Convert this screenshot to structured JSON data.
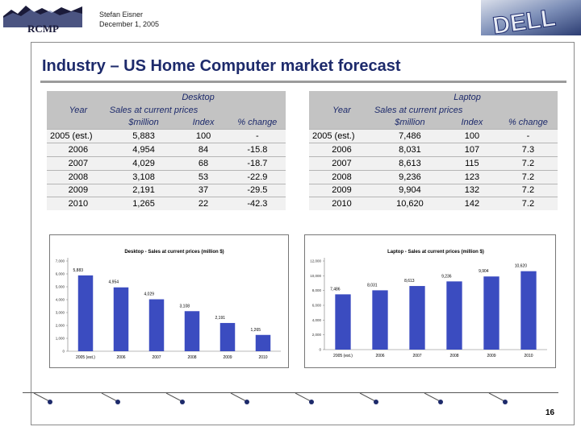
{
  "header": {
    "author": "Stefan Eisner",
    "date": "December 1, 2005",
    "logo_left": "RCMP",
    "logo_right": "DELL"
  },
  "title": "Industry – US Home Computer market forecast",
  "desktop_table": {
    "caption": "Desktop",
    "headers": {
      "year": "Year",
      "sales_line1": "Sales at current prices",
      "sales_line2": "$million",
      "index": "Index",
      "change": "% change"
    },
    "rows": [
      {
        "year": "2005 (est.)",
        "sales": "5,883",
        "index": "100",
        "change": "-"
      },
      {
        "year": "2006",
        "sales": "4,954",
        "index": "84",
        "change": "-15.8"
      },
      {
        "year": "2007",
        "sales": "4,029",
        "index": "68",
        "change": "-18.7"
      },
      {
        "year": "2008",
        "sales": "3,108",
        "index": "53",
        "change": "-22.9"
      },
      {
        "year": "2009",
        "sales": "2,191",
        "index": "37",
        "change": "-29.5"
      },
      {
        "year": "2010",
        "sales": "1,265",
        "index": "22",
        "change": "-42.3"
      }
    ]
  },
  "laptop_table": {
    "caption": "Laptop",
    "headers": {
      "year": "Year",
      "sales_line1": "Sales at current prices",
      "sales_line2": "$million",
      "index": "Index",
      "change": "% change"
    },
    "rows": [
      {
        "year": "2005 (est.)",
        "sales": "7,486",
        "index": "100",
        "change": "-"
      },
      {
        "year": "2006",
        "sales": "8,031",
        "index": "107",
        "change": "7.3"
      },
      {
        "year": "2007",
        "sales": "8,613",
        "index": "115",
        "change": "7.2"
      },
      {
        "year": "2008",
        "sales": "9,236",
        "index": "123",
        "change": "7.2"
      },
      {
        "year": "2009",
        "sales": "9,904",
        "index": "132",
        "change": "7.2"
      },
      {
        "year": "2010",
        "sales": "10,620",
        "index": "142",
        "change": "7.2"
      }
    ]
  },
  "chart_data": [
    {
      "type": "bar",
      "title": "Desktop - Sales at current prices (million $)",
      "categories": [
        "2005 (est.)",
        "2006",
        "2007",
        "2008",
        "2009",
        "2010"
      ],
      "values": [
        5883,
        4954,
        4029,
        3108,
        2191,
        1265
      ],
      "value_labels": [
        "5,883",
        "4,954",
        "4,029",
        "3,108",
        "2,191",
        "1,265"
      ],
      "ylim": [
        0,
        7000
      ],
      "yticks": [
        0,
        1000,
        2000,
        3000,
        4000,
        5000,
        6000,
        7000
      ],
      "ytick_labels": [
        "0",
        "1,000",
        "2,000",
        "3,000",
        "4,000",
        "5,000",
        "6,000",
        "7,000"
      ],
      "xlabel": "",
      "ylabel": "",
      "bar_color": "#3b4cc0"
    },
    {
      "type": "bar",
      "title": "Laptop - Sales at current prices (million $)",
      "categories": [
        "2005 (est.)",
        "2006",
        "2007",
        "2008",
        "2009",
        "2010"
      ],
      "values": [
        7486,
        8031,
        8613,
        9236,
        9904,
        10620
      ],
      "value_labels": [
        "7,486",
        "8,031",
        "8,613",
        "9,236",
        "9,904",
        "10,620"
      ],
      "ylim": [
        0,
        12000
      ],
      "yticks": [
        0,
        2000,
        4000,
        6000,
        8000,
        10000,
        12000
      ],
      "ytick_labels": [
        "0",
        "2,000",
        "4,000",
        "6,000",
        "8,000",
        "10,000",
        "12,000"
      ],
      "xlabel": "",
      "ylabel": "",
      "bar_color": "#3b4cc0"
    }
  ],
  "footer": {
    "page_number": "16"
  }
}
